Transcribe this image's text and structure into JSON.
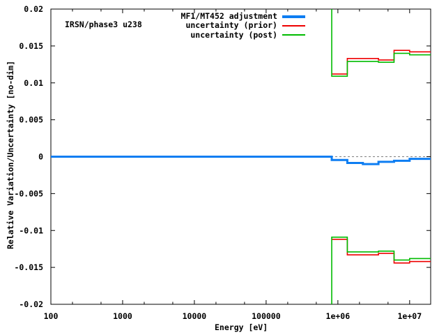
{
  "chart_data": {
    "type": "line",
    "subtype": "step-histogram",
    "title": "IRSN/phase3 u238",
    "xlabel": "Energy [eV]",
    "ylabel": "Relative Variation/Uncertainty [no-dim]",
    "x_scale": "log10",
    "xlim": [
      100,
      19640000
    ],
    "ylim": [
      -0.02,
      0.02
    ],
    "grid": false,
    "legend_position": "top-right-inside",
    "background_color": "#ffffff",
    "border_color": "#000000",
    "zero_line": {
      "y": 0,
      "style": "dashed",
      "color": "#7f7f7f"
    },
    "x_ticks": {
      "values": [
        100,
        1000,
        10000,
        100000,
        1000000,
        10000000
      ],
      "labels": [
        "100",
        "1000",
        "10000",
        "100000",
        "1e+06",
        "1e+07"
      ],
      "minor_multipliers": [
        2,
        5
      ]
    },
    "y_ticks": {
      "values": [
        -0.02,
        -0.015,
        -0.01,
        -0.005,
        0,
        0.005,
        0.01,
        0.015,
        0.02
      ],
      "labels": [
        "-0.02",
        "-0.015",
        "-0.01",
        "-0.005",
        "0",
        "0.005",
        "0.01",
        "0.015",
        "0.02"
      ]
    },
    "series": [
      {
        "name": "MF1/MT452 adjustment",
        "color": "#0d7df2",
        "line_width": 3,
        "mirror": false,
        "enters_from_offscale": false,
        "step_boundaries_ev": [
          100,
          820850,
          1353400,
          2231300,
          3678800,
          6065300,
          10000000,
          19640000
        ],
        "values": [
          0,
          -0.00045,
          -0.00085,
          -0.001,
          -0.0007,
          -0.00055,
          -0.0003
        ]
      },
      {
        "name": "uncertainty (prior)",
        "color": "#ee0000",
        "line_width": 1.6,
        "mirror": true,
        "enters_from_offscale": false,
        "step_boundaries_ev": [
          820850,
          1353400,
          3678800,
          6065300,
          10000000,
          19640000
        ],
        "values": [
          0.0112,
          0.0133,
          0.0131,
          0.0144,
          0.0142
        ]
      },
      {
        "name": "uncertainty (post)",
        "color": "#00bb00",
        "line_width": 1.6,
        "mirror": true,
        "enters_from_offscale": true,
        "step_boundaries_ev": [
          820850,
          1353400,
          3678800,
          6065300,
          10000000,
          19640000
        ],
        "values": [
          0.0109,
          0.0129,
          0.0128,
          0.014,
          0.0138
        ]
      }
    ]
  }
}
